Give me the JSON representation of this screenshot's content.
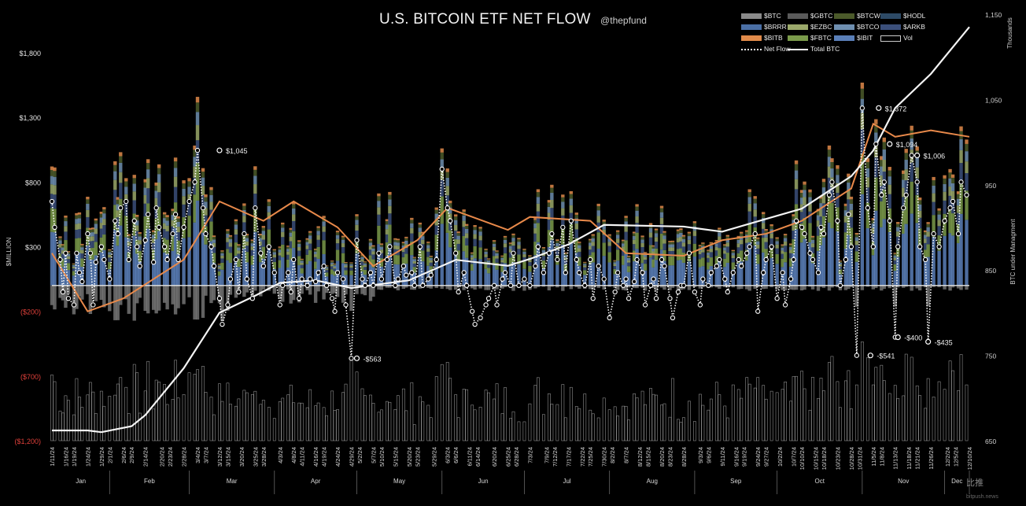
{
  "header": {
    "title": "U.S. BITCOIN ETF NET FLOW",
    "handle": "@thepfund"
  },
  "watermark": {
    "brand": "比推",
    "site": "bitpush.news"
  },
  "legend": [
    {
      "label": "$BTC",
      "kind": "swatch",
      "color": "#8a8a8a"
    },
    {
      "label": "$GBTC",
      "kind": "swatch",
      "color": "#5a5a5a"
    },
    {
      "label": "$BTCW",
      "kind": "swatch",
      "color": "#4b5a2a"
    },
    {
      "label": "$HODL",
      "kind": "swatch",
      "color": "#2d4a66"
    },
    {
      "label": "$BRRR",
      "kind": "swatch",
      "color": "#4a6fa5"
    },
    {
      "label": "$EZBC",
      "kind": "swatch",
      "color": "#9aa86a"
    },
    {
      "label": "$BTCO",
      "kind": "swatch",
      "color": "#6f8fb0"
    },
    {
      "label": "$ARKB",
      "kind": "swatch",
      "color": "#3b4f7a"
    },
    {
      "label": "$BITB",
      "kind": "swatch",
      "color": "#e08a4a"
    },
    {
      "label": "$FBTC",
      "kind": "swatch",
      "color": "#7a9a4a"
    },
    {
      "label": "$IBIT",
      "kind": "swatch",
      "color": "#5a7fb8"
    },
    {
      "label": "Vol",
      "kind": "box",
      "color": "#cccccc"
    },
    {
      "label": "Net Flow",
      "kind": "dots",
      "color": "#ffffff"
    },
    {
      "label": "Total BTC",
      "kind": "line",
      "color": "#ffffff"
    }
  ],
  "chart_data": {
    "type": "bar",
    "title": "U.S. BITCOIN ETF NET FLOW",
    "ylabel": "$MILLION",
    "y2label": "BTC under Managment",
    "y2unit": "Thousands",
    "ylim": [
      -1200,
      1800
    ],
    "yticks": [
      1800,
      1300,
      800,
      300,
      -200,
      -700,
      -1200
    ],
    "ytick_labels": [
      "$1,800",
      "$1,300",
      "$800",
      "$300",
      "($200)",
      "($700)",
      "($1,200)"
    ],
    "y2lim": [
      650,
      1150
    ],
    "y2ticks": [
      1150,
      1050,
      950,
      850,
      750,
      650
    ],
    "y2tick_labels": [
      "1,150",
      "1,050",
      "950",
      "850",
      "750",
      "650"
    ],
    "x_date_labels": [
      "1/11/24",
      "1/16/24",
      "1/19/24",
      "1/24/24",
      "1/29/24",
      "2/1/24",
      "2/6/24",
      "2/9/24",
      "2/14/24",
      "2/20/24",
      "2/23/24",
      "2/28/24",
      "3/4/24",
      "3/7/24",
      "3/12/24",
      "3/15/24",
      "3/20/24",
      "3/25/24",
      "3/28/24",
      "4/3/24",
      "4/8/24",
      "4/11/24",
      "4/16/24",
      "4/19/24",
      "4/24/24",
      "4/29/24",
      "5/2/24",
      "5/7/24",
      "5/10/24",
      "5/15/24",
      "5/20/24",
      "5/23/24",
      "5/29/24",
      "6/3/24",
      "6/6/24",
      "6/11/24",
      "6/14/24",
      "6/20/24",
      "6/25/24",
      "6/28/24",
      "7/3/24",
      "7/9/24",
      "7/12/24",
      "7/17/24",
      "7/22/24",
      "7/25/24",
      "7/30/24",
      "8/2/24",
      "8/7/24",
      "8/12/24",
      "8/15/24",
      "8/20/24",
      "8/23/24",
      "8/28/24",
      "9/3/24",
      "9/6/24",
      "9/11/24",
      "9/16/24",
      "9/19/24",
      "9/24/24",
      "9/27/24",
      "10/2/24",
      "10/7/24",
      "10/10/24",
      "10/15/24",
      "10/18/24",
      "10/23/24",
      "10/28/24",
      "10/31/24",
      "11/5/24",
      "11/8/24",
      "11/13/24",
      "11/18/24",
      "11/21/24",
      "11/26/24",
      "12/2/24",
      "12/5/24",
      "12/10/24"
    ],
    "months": [
      "Jan",
      "Feb",
      "Mar",
      "Apr",
      "May",
      "Jun",
      "Jul",
      "Aug",
      "Sep",
      "Oct",
      "Nov",
      "Dec"
    ],
    "annotations": [
      {
        "label": "$1,045",
        "date": "3/12/24",
        "value": 1045
      },
      {
        "label": "-$563",
        "date": "5/1/24",
        "value": -563
      },
      {
        "label": "$1,372",
        "date": "11/7/24",
        "value": 1372
      },
      {
        "label": "$1,094",
        "date": "11/11/24",
        "value": 1094
      },
      {
        "label": "$1,006",
        "date": "11/21/24",
        "value": 1006
      },
      {
        "label": "-$541",
        "date": "11/4/24",
        "value": -541
      },
      {
        "label": "-$400",
        "date": "11/14/24",
        "value": -400
      },
      {
        "label": "-$435",
        "date": "11/25/24",
        "value": -435
      }
    ],
    "net_flow_monthly_shape": [
      {
        "month": "Jan",
        "values": [
          650,
          450,
          200,
          -50,
          250,
          -100,
          -150,
          250,
          100,
          30,
          400,
          250,
          -150,
          180,
          300,
          200
        ]
      },
      {
        "month": "Feb",
        "values": [
          50,
          500,
          400,
          600,
          650,
          200,
          500,
          300,
          150,
          350,
          550,
          180,
          600,
          450,
          300,
          200,
          400,
          550,
          200,
          450
        ]
      },
      {
        "month": "Mar",
        "values": [
          650,
          800,
          1045,
          600,
          400,
          300,
          150,
          -100,
          -300,
          -150,
          50,
          200,
          -50,
          400,
          50,
          -100,
          600,
          250,
          150,
          300
        ]
      },
      {
        "month": "Apr",
        "values": [
          100,
          -150,
          0,
          100,
          -50,
          200,
          -100,
          50,
          0,
          50,
          30,
          100,
          150,
          0,
          -100,
          -200,
          100,
          50,
          -150,
          -563
        ]
      },
      {
        "month": "May",
        "values": [
          350,
          50,
          0,
          100,
          0,
          250,
          50,
          200,
          300,
          0,
          50,
          150,
          80,
          100,
          0,
          300,
          0,
          50,
          80,
          200
        ]
      },
      {
        "month": "Jun",
        "values": [
          900,
          600,
          500,
          250,
          -50,
          100,
          0,
          -200,
          -300,
          -250,
          -150,
          -100,
          0,
          -150,
          50,
          100,
          0,
          250,
          0
        ]
      },
      {
        "month": "Jul",
        "values": [
          50,
          0,
          150,
          300,
          100,
          250,
          400,
          200,
          450,
          100,
          500,
          200,
          100,
          0,
          200,
          -100,
          150,
          50
        ]
      },
      {
        "month": "Aug",
        "values": [
          -250,
          -50,
          100,
          0,
          50,
          -100,
          30,
          200,
          100,
          -150,
          0,
          50,
          -100,
          200,
          150,
          -100,
          -250,
          -50,
          0,
          0,
          250
        ]
      },
      {
        "month": "Sep",
        "values": [
          -50,
          -150,
          50,
          0,
          100,
          150,
          200,
          50,
          -50,
          100,
          200,
          150,
          250,
          300,
          400,
          -200,
          100,
          200,
          300
        ]
      },
      {
        "month": "Oct",
        "values": [
          -100,
          100,
          -150,
          50,
          200,
          500,
          450,
          400,
          250,
          200,
          100,
          450,
          400,
          700,
          800,
          500,
          0,
          200,
          550,
          300,
          -541
        ]
      },
      {
        "month": "Nov",
        "values": [
          1372,
          600,
          300,
          1094,
          700,
          800,
          500,
          -400,
          300,
          600,
          700,
          1006,
          800,
          300,
          200,
          -435,
          400,
          300
        ]
      },
      {
        "month": "Dec",
        "values": [
          500,
          600,
          650,
          400,
          800,
          700
        ]
      }
    ],
    "total_btc_thousands": [
      {
        "date": "1/11/24",
        "value": 662
      },
      {
        "date": "1/24/24",
        "value": 662
      },
      {
        "date": "1/29/24",
        "value": 660
      },
      {
        "date": "2/9/24",
        "value": 667
      },
      {
        "date": "2/14/24",
        "value": 680
      },
      {
        "date": "2/28/24",
        "value": 735
      },
      {
        "date": "3/12/24",
        "value": 800
      },
      {
        "date": "3/25/24",
        "value": 820
      },
      {
        "date": "4/3/24",
        "value": 835
      },
      {
        "date": "4/16/24",
        "value": 838
      },
      {
        "date": "4/29/24",
        "value": 829
      },
      {
        "date": "5/20/24",
        "value": 838
      },
      {
        "date": "6/6/24",
        "value": 862
      },
      {
        "date": "6/25/24",
        "value": 855
      },
      {
        "date": "7/3/24",
        "value": 863
      },
      {
        "date": "7/17/24",
        "value": 880
      },
      {
        "date": "7/30/24",
        "value": 903
      },
      {
        "date": "8/28/24",
        "value": 901
      },
      {
        "date": "9/11/24",
        "value": 895
      },
      {
        "date": "9/27/24",
        "value": 910
      },
      {
        "date": "10/10/24",
        "value": 922
      },
      {
        "date": "10/28/24",
        "value": 960
      },
      {
        "date": "11/5/24",
        "value": 990
      },
      {
        "date": "11/13/24",
        "value": 1040
      },
      {
        "date": "11/26/24",
        "value": 1080
      },
      {
        "date": "12/10/24",
        "value": 1135
      }
    ],
    "bitb_line_millions": [
      {
        "date": "1/11/24",
        "value": 250
      },
      {
        "date": "1/24/24",
        "value": -200
      },
      {
        "date": "2/6/24",
        "value": -100
      },
      {
        "date": "2/28/24",
        "value": 200
      },
      {
        "date": "3/12/24",
        "value": 650
      },
      {
        "date": "3/28/24",
        "value": 500
      },
      {
        "date": "4/8/24",
        "value": 650
      },
      {
        "date": "4/24/24",
        "value": 450
      },
      {
        "date": "5/7/24",
        "value": 150
      },
      {
        "date": "5/23/24",
        "value": 350
      },
      {
        "date": "6/3/24",
        "value": 600
      },
      {
        "date": "6/25/24",
        "value": 430
      },
      {
        "date": "7/3/24",
        "value": 530
      },
      {
        "date": "7/25/24",
        "value": 500
      },
      {
        "date": "8/7/24",
        "value": 250
      },
      {
        "date": "8/28/24",
        "value": 230
      },
      {
        "date": "9/11/24",
        "value": 350
      },
      {
        "date": "9/27/24",
        "value": 400
      },
      {
        "date": "10/10/24",
        "value": 500
      },
      {
        "date": "10/28/24",
        "value": 750
      },
      {
        "date": "11/5/24",
        "value": 1250
      },
      {
        "date": "11/13/24",
        "value": 1150
      },
      {
        "date": "11/26/24",
        "value": 1200
      },
      {
        "date": "12/10/24",
        "value": 1150
      }
    ],
    "grid": false,
    "legend_position": "top-right"
  }
}
